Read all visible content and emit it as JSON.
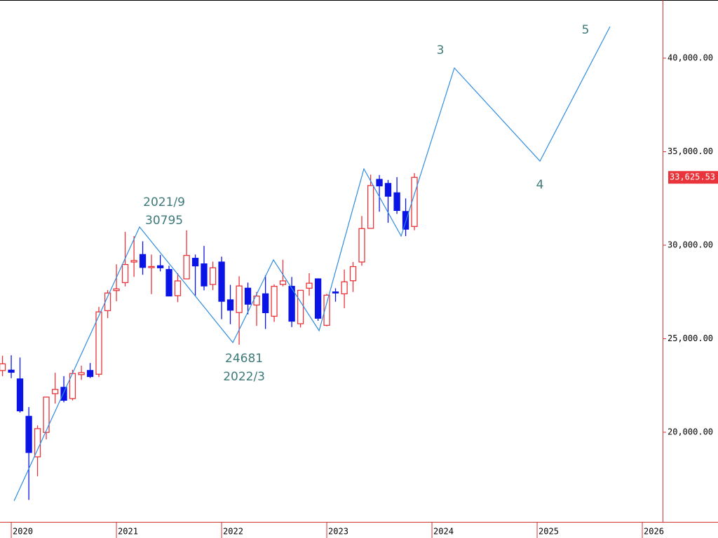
{
  "chart_data": {
    "type": "candlestick",
    "x": [
      2019.917,
      2020.0,
      2020.083,
      2020.167,
      2020.25,
      2020.333,
      2020.417,
      2020.5,
      2020.583,
      2020.667,
      2020.75,
      2020.833,
      2020.917,
      2021.0,
      2021.083,
      2021.167,
      2021.25,
      2021.333,
      2021.417,
      2021.5,
      2021.583,
      2021.667,
      2021.75,
      2021.833,
      2021.917,
      2022.0,
      2022.083,
      2022.167,
      2022.25,
      2022.333,
      2022.417,
      2022.5,
      2022.583,
      2022.667,
      2022.75,
      2022.833,
      2022.917,
      2023.0,
      2023.083,
      2023.167,
      2023.25,
      2023.333,
      2023.417,
      2023.5,
      2023.583,
      2023.667,
      2023.75,
      2023.833
    ],
    "open": [
      23300,
      23320,
      22850,
      20850,
      18686,
      19991,
      22062,
      22400,
      21800,
      23080,
      23300,
      23100,
      26500,
      27575,
      28000,
      29100,
      29500,
      28800,
      28900,
      28700,
      27300,
      28200,
      29300,
      29000,
      27900,
      29098,
      27078,
      26400,
      27700,
      26800,
      27400,
      26200,
      27900,
      27800,
      25800,
      27700,
      28200,
      25716,
      27500,
      27400,
      28100,
      29100,
      30900,
      33517,
      33300,
      32800,
      31800,
      31000
    ],
    "high": [
      24090,
      24115,
      23995,
      21345,
      20365,
      21900,
      23178,
      23000,
      23340,
      23560,
      23700,
      26700,
      27600,
      28979,
      30714,
      30485,
      30208,
      29500,
      29480,
      28900,
      28500,
      30795,
      29500,
      29960,
      29121,
      29388,
      27880,
      28338,
      28000,
      27500,
      28389,
      27900,
      29222,
      28300,
      27600,
      28502,
      28226,
      27400,
      27696,
      28700,
      29100,
      31560,
      33772,
      33753,
      33488,
      33634,
      32500,
      33853
    ],
    "low": [
      23000,
      22892,
      21050,
      16380,
      17646,
      19617,
      21529,
      21600,
      21700,
      22800,
      22900,
      22950,
      26100,
      27002,
      27800,
      28308,
      28419,
      27385,
      28600,
      27272,
      26954,
      28200,
      27293,
      27588,
      27600,
      26044,
      25776,
      24681,
      26304,
      25688,
      25520,
      25900,
      27800,
      25622,
      25600,
      27300,
      25953,
      25662,
      26978,
      26632,
      27500,
      28900,
      30900,
      31791,
      31200,
      31674,
      30487,
      30800
    ],
    "close": [
      23656,
      23205,
      21143,
      18917,
      20193,
      21878,
      22288,
      21710,
      23140,
      23185,
      22977,
      26434,
      27444,
      27663,
      28966,
      29179,
      28812,
      28860,
      28792,
      27284,
      28090,
      29453,
      28893,
      27822,
      28791,
      27001,
      26526,
      27821,
      26847,
      27279,
      26393,
      27801,
      28091,
      25937,
      27587,
      27968,
      26095,
      27327,
      27446,
      28041,
      28856,
      30888,
      33189,
      33172,
      32619,
      31858,
      30858,
      33625.53
    ],
    "up_color": "#e8343a",
    "down_color": "#0a14e6",
    "last_price": {
      "value": 33625.53,
      "label": "33,625.53"
    },
    "wave": {
      "color": "#2f8ce0",
      "x": [
        2020.027,
        2021.22,
        2022.107,
        2022.493,
        2022.927,
        2023.353,
        2023.707,
        2024.213,
        2025.027,
        2025.693
      ],
      "values": [
        16330,
        30974,
        24794,
        29213,
        25431,
        34082,
        30487,
        39476,
        34494,
        41685
      ]
    },
    "annotations": [
      "2021/9",
      "30795",
      "24681",
      "2022/3",
      "3",
      "4",
      "5"
    ],
    "xlim": [
      2019.893,
      2026.193
    ],
    "ylim": [
      15206,
      43109
    ],
    "xticks": [
      2020,
      2021,
      2022,
      2023,
      2024,
      2025,
      2026
    ],
    "yticks": [
      {
        "value": 20000,
        "label": "20,000.00"
      },
      {
        "value": 25000,
        "label": "25,000.00"
      },
      {
        "value": 30000,
        "label": "30,000.00"
      },
      {
        "value": 35000,
        "label": "35,000.00"
      },
      {
        "value": 40000,
        "label": "40,000.00"
      }
    ]
  }
}
